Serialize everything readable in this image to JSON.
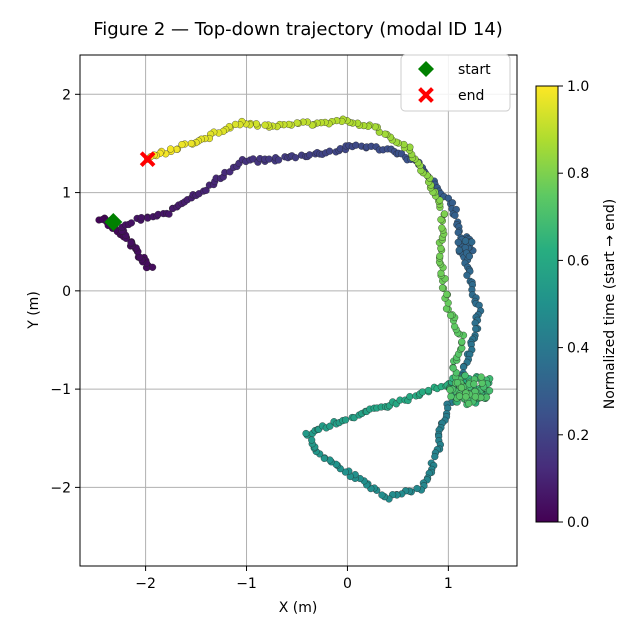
{
  "title": "Figure 2 — Top-down trajectory (modal ID 14)",
  "chart_data": {
    "type": "scatter",
    "title": "Figure 2 — Top-down trajectory (modal ID 14)",
    "xlabel": "X (m)",
    "ylabel": "Y (m)",
    "xlim": [
      -2.65,
      1.68
    ],
    "ylim": [
      -2.8,
      2.4
    ],
    "xticks": [
      -2,
      -1,
      0,
      1
    ],
    "xtick_labels": [
      "−2",
      "−1",
      "0",
      "1"
    ],
    "yticks": [
      -2,
      -1,
      0,
      1,
      2
    ],
    "ytick_labels": [
      "−2",
      "−1",
      "0",
      "1",
      "2"
    ],
    "grid": true,
    "legend_position": "top-right",
    "legend": [
      {
        "label": "start",
        "marker": "diamond",
        "color": "#008000"
      },
      {
        "label": "end",
        "marker": "x",
        "color": "#ff0000"
      }
    ],
    "start_point": {
      "x": -2.32,
      "y": 0.7
    },
    "end_point": {
      "x": -1.98,
      "y": 1.34
    },
    "colorbar": {
      "label": "Normalized time (start → end)",
      "range": [
        0,
        1
      ],
      "ticks": [
        0,
        0.2,
        0.4,
        0.6,
        0.8,
        1.0
      ],
      "tick_labels": [
        "0.0",
        "0.2",
        "0.4",
        "0.6",
        "0.8",
        "1.0"
      ],
      "colormap": "viridis"
    },
    "trajectory_waypoints": [
      {
        "t": 0.0,
        "x": -2.32,
        "y": 0.7
      },
      {
        "t": 0.01,
        "x": -2.45,
        "y": 0.73
      },
      {
        "t": 0.02,
        "x": -2.2,
        "y": 0.55
      },
      {
        "t": 0.03,
        "x": -1.95,
        "y": 0.22
      },
      {
        "t": 0.04,
        "x": -2.25,
        "y": 0.62
      },
      {
        "t": 0.05,
        "x": -2.1,
        "y": 0.72
      },
      {
        "t": 0.06,
        "x": -1.8,
        "y": 0.78
      },
      {
        "t": 0.08,
        "x": -1.6,
        "y": 0.92
      },
      {
        "t": 0.1,
        "x": -1.4,
        "y": 1.04
      },
      {
        "t": 0.12,
        "x": -1.2,
        "y": 1.2
      },
      {
        "t": 0.14,
        "x": -1.05,
        "y": 1.32
      },
      {
        "t": 0.16,
        "x": -0.8,
        "y": 1.33
      },
      {
        "t": 0.18,
        "x": -0.5,
        "y": 1.37
      },
      {
        "t": 0.2,
        "x": -0.2,
        "y": 1.41
      },
      {
        "t": 0.22,
        "x": 0.1,
        "y": 1.48
      },
      {
        "t": 0.24,
        "x": 0.45,
        "y": 1.43
      },
      {
        "t": 0.26,
        "x": 0.7,
        "y": 1.3
      },
      {
        "t": 0.28,
        "x": 0.85,
        "y": 1.1
      },
      {
        "t": 0.3,
        "x": 1.05,
        "y": 0.85
      },
      {
        "t": 0.32,
        "x": 1.15,
        "y": 0.45
      },
      {
        "t": 0.34,
        "x": 1.2,
        "y": 0.15
      },
      {
        "t": 0.36,
        "x": 1.3,
        "y": -0.2
      },
      {
        "t": 0.38,
        "x": 1.25,
        "y": -0.5
      },
      {
        "t": 0.4,
        "x": 1.1,
        "y": -0.95
      },
      {
        "t": 0.42,
        "x": 0.95,
        "y": -1.3
      },
      {
        "t": 0.44,
        "x": 0.9,
        "y": -1.6
      },
      {
        "t": 0.46,
        "x": 0.75,
        "y": -2.0
      },
      {
        "t": 0.48,
        "x": 0.4,
        "y": -2.1
      },
      {
        "t": 0.5,
        "x": 0.0,
        "y": -1.85
      },
      {
        "t": 0.52,
        "x": -0.3,
        "y": -1.65
      },
      {
        "t": 0.54,
        "x": -0.4,
        "y": -1.45
      },
      {
        "t": 0.56,
        "x": 0.0,
        "y": -1.3
      },
      {
        "t": 0.58,
        "x": 0.3,
        "y": -1.2
      },
      {
        "t": 0.6,
        "x": 0.6,
        "y": -1.1
      },
      {
        "t": 0.62,
        "x": 0.85,
        "y": -1.0
      },
      {
        "t": 0.64,
        "x": 1.1,
        "y": -0.95
      },
      {
        "t": 0.66,
        "x": 1.3,
        "y": -1.05
      },
      {
        "t": 0.68,
        "x": 1.4,
        "y": -0.9
      },
      {
        "t": 0.7,
        "x": 1.2,
        "y": -1.1
      },
      {
        "t": 0.72,
        "x": 1.05,
        "y": -0.8
      },
      {
        "t": 0.74,
        "x": 1.15,
        "y": -0.5
      },
      {
        "t": 0.76,
        "x": 1.0,
        "y": -0.2
      },
      {
        "t": 0.78,
        "x": 0.92,
        "y": 0.3
      },
      {
        "t": 0.8,
        "x": 0.95,
        "y": 0.8
      },
      {
        "t": 0.82,
        "x": 0.8,
        "y": 1.15
      },
      {
        "t": 0.84,
        "x": 0.6,
        "y": 1.45
      },
      {
        "t": 0.86,
        "x": 0.3,
        "y": 1.65
      },
      {
        "t": 0.88,
        "x": 0.0,
        "y": 1.73
      },
      {
        "t": 0.9,
        "x": -0.4,
        "y": 1.7
      },
      {
        "t": 0.92,
        "x": -0.8,
        "y": 1.68
      },
      {
        "t": 0.94,
        "x": -1.05,
        "y": 1.72
      },
      {
        "t": 0.96,
        "x": -1.4,
        "y": 1.55
      },
      {
        "t": 0.98,
        "x": -1.7,
        "y": 1.45
      },
      {
        "t": 1.0,
        "x": -1.98,
        "y": 1.34
      }
    ]
  }
}
